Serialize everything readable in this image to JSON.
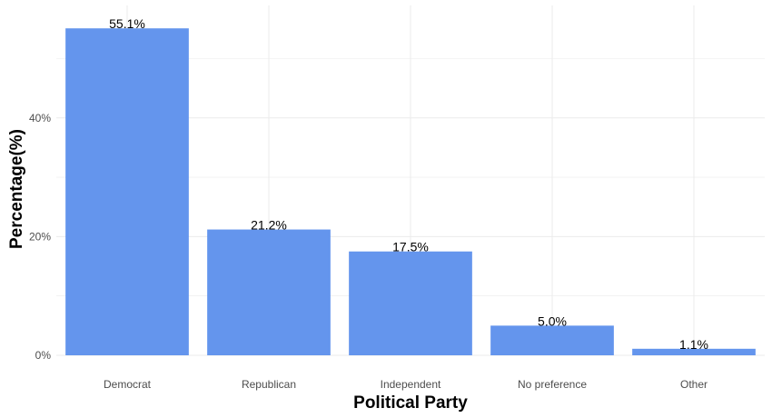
{
  "chart_data": {
    "type": "bar",
    "title": "",
    "xlabel": "Political Party",
    "ylabel": "Percentage(%)",
    "categories": [
      "Democrat",
      "Republican",
      "Independent",
      "No preference",
      "Other"
    ],
    "values": [
      55.1,
      21.2,
      17.5,
      5.0,
      1.1
    ],
    "value_labels": [
      "55.1%",
      "21.2%",
      "17.5%",
      "5.0%",
      "1.1%"
    ],
    "y_ticks": [
      0,
      20,
      40
    ],
    "y_tick_labels": [
      "0%",
      "20%",
      "40%"
    ],
    "ylim": [
      0,
      59
    ],
    "grid": true,
    "bar_color": "#6495ED",
    "grid_color": "#ebebeb"
  }
}
